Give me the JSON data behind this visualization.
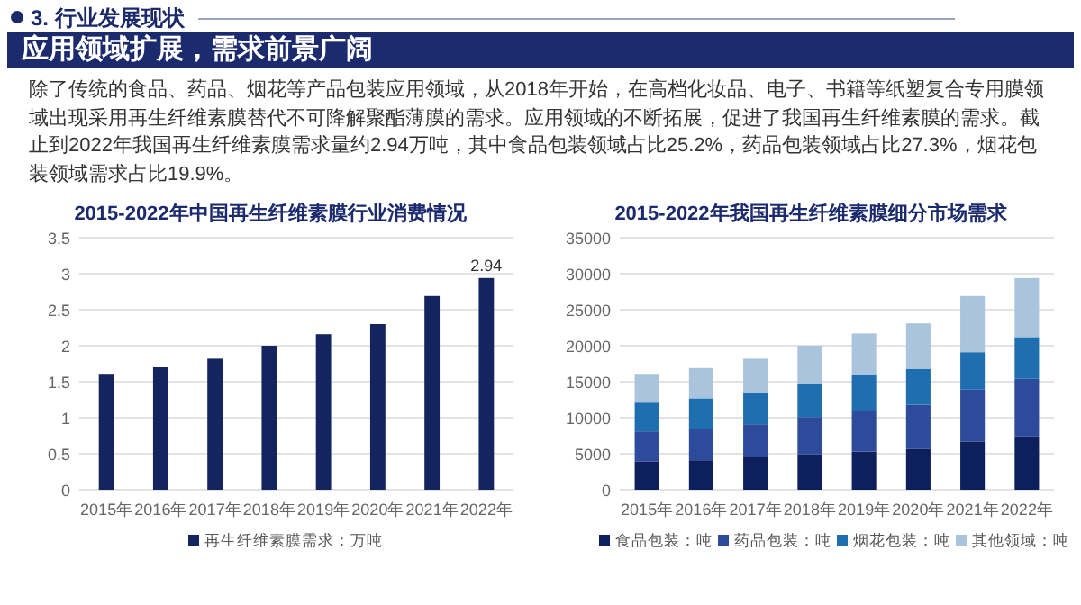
{
  "chart_data": [
    {
      "type": "other",
      "subtitle": "3. 行业发展现状",
      "title": "应用领域扩展，需求前景广阔",
      "annotations": [
        "除了传统的食品、药品、烟花等产品包装应用领域，从2018年开始，在高档化妆品、电子、书籍等纸塑复合专用膜领域出现采用再生纤维素膜替代不可降解聚酯薄膜的需求。应用领域的不断拓展，促进了我国再生纤维素膜的需求。截止到2022年我国再生纤维素膜需求量约2.94万吨，其中食品包装领域占比25.2%，药品包装领域占比27.3%，烟花包装领域需求占比19.9%。"
      ]
    },
    {
      "type": "bar",
      "title": "2015-2022年中国再生纤维素膜行业消费情况",
      "categories": [
        "2015年",
        "2016年",
        "2017年",
        "2018年",
        "2019年",
        "2020年",
        "2021年",
        "2022年"
      ],
      "series": [
        {
          "name": "再生纤维素膜需求：万吨",
          "color": "#14245e",
          "values": [
            1.61,
            1.7,
            1.82,
            2.0,
            2.16,
            2.3,
            2.69,
            2.94
          ],
          "value_labels": [
            null,
            null,
            null,
            null,
            null,
            null,
            null,
            "2.94"
          ]
        }
      ],
      "ylim": [
        0,
        3.5
      ],
      "yticks": [
        0,
        0.5,
        1,
        1.5,
        2,
        2.5,
        3,
        3.5
      ],
      "grid": "y",
      "legend": "bottom"
    },
    {
      "type": "bar",
      "title": "2015-2022年我国再生纤维素膜细分市场需求",
      "categories": [
        "2015年",
        "2016年",
        "2017年",
        "2018年",
        "2019年",
        "2020年",
        "2021年",
        "2022年"
      ],
      "stacked": true,
      "series": [
        {
          "name": "食品包装：吨",
          "color": "#0d1f5c",
          "values": [
            3900,
            4100,
            4500,
            4900,
            5300,
            5700,
            6700,
            7400
          ]
        },
        {
          "name": "药品包装：吨",
          "color": "#2e4a9a",
          "values": [
            4200,
            4300,
            4600,
            5200,
            5700,
            6100,
            7200,
            8000
          ]
        },
        {
          "name": "烟花包装：吨",
          "color": "#1f6fb0",
          "values": [
            4000,
            4300,
            4400,
            4600,
            5000,
            5000,
            5200,
            5800
          ]
        },
        {
          "name": "其他领域：吨",
          "color": "#a9c4dc",
          "values": [
            4000,
            4200,
            4700,
            5300,
            5700,
            6300,
            7800,
            8200
          ]
        }
      ],
      "ylim": [
        0,
        35000
      ],
      "yticks": [
        0,
        5000,
        10000,
        15000,
        20000,
        25000,
        30000,
        35000
      ],
      "grid": "y",
      "legend": "bottom"
    }
  ]
}
